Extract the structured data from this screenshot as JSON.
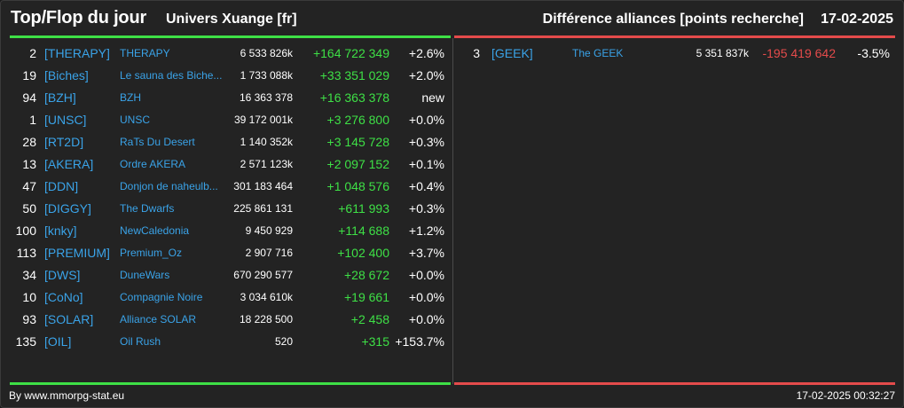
{
  "header": {
    "title": "Top/Flop du jour",
    "universe": "Univers Xuange [fr]",
    "subtitle": "Différence alliances [points recherche]",
    "date": "17-02-2025"
  },
  "colors": {
    "gain": "#3ee046",
    "loss": "#e44b4b",
    "link": "#3aa3e8",
    "background": "#232323"
  },
  "top": [
    {
      "rank": "2",
      "tag": "[THERAPY]",
      "name": "THERAPY",
      "points": "6 533 826k",
      "delta": "+164 722 349",
      "pct": "+2.6%"
    },
    {
      "rank": "19",
      "tag": "[Biches]",
      "name": "Le sauna des Biche...",
      "points": "1 733 088k",
      "delta": "+33 351 029",
      "pct": "+2.0%"
    },
    {
      "rank": "94",
      "tag": "[BZH]",
      "name": "BZH",
      "points": "16 363 378",
      "delta": "+16 363 378",
      "pct": "new"
    },
    {
      "rank": "1",
      "tag": "[UNSC]",
      "name": "UNSC",
      "points": "39 172 001k",
      "delta": "+3 276 800",
      "pct": "+0.0%"
    },
    {
      "rank": "28",
      "tag": "[RT2D]",
      "name": "RaTs Du Desert",
      "points": "1 140 352k",
      "delta": "+3 145 728",
      "pct": "+0.3%"
    },
    {
      "rank": "13",
      "tag": "[AKERA]",
      "name": "Ordre AKERA",
      "points": "2 571 123k",
      "delta": "+2 097 152",
      "pct": "+0.1%"
    },
    {
      "rank": "47",
      "tag": "[DDN]",
      "name": "Donjon de naheulb...",
      "points": "301 183 464",
      "delta": "+1 048 576",
      "pct": "+0.4%"
    },
    {
      "rank": "50",
      "tag": "[DIGGY]",
      "name": "The Dwarfs",
      "points": "225 861 131",
      "delta": "+611 993",
      "pct": "+0.3%"
    },
    {
      "rank": "100",
      "tag": "[knky]",
      "name": "NewCaledonia",
      "points": "9 450 929",
      "delta": "+114 688",
      "pct": "+1.2%"
    },
    {
      "rank": "113",
      "tag": "[PREMIUM]",
      "name": "Premium_Oz",
      "points": "2 907 716",
      "delta": "+102 400",
      "pct": "+3.7%"
    },
    {
      "rank": "34",
      "tag": "[DWS]",
      "name": "DuneWars",
      "points": "670 290 577",
      "delta": "+28 672",
      "pct": "+0.0%"
    },
    {
      "rank": "10",
      "tag": "[CoNo]",
      "name": "Compagnie Noire",
      "points": "3 034 610k",
      "delta": "+19 661",
      "pct": "+0.0%"
    },
    {
      "rank": "93",
      "tag": "[SOLAR]",
      "name": "Alliance SOLAR",
      "points": "18 228 500",
      "delta": "+2 458",
      "pct": "+0.0%"
    },
    {
      "rank": "135",
      "tag": "[OIL]",
      "name": "Oil Rush",
      "points": "520",
      "delta": "+315",
      "pct": "+153.7%"
    }
  ],
  "flop": [
    {
      "rank": "3",
      "tag": "[GEEK]",
      "name": "The GEEK",
      "points": "5 351 837k",
      "delta": "-195 419 642",
      "pct": "-3.5%"
    }
  ],
  "footer": {
    "credit": "By www.mmorpg-stat.eu",
    "timestamp": "17-02-2025 00:32:27"
  }
}
